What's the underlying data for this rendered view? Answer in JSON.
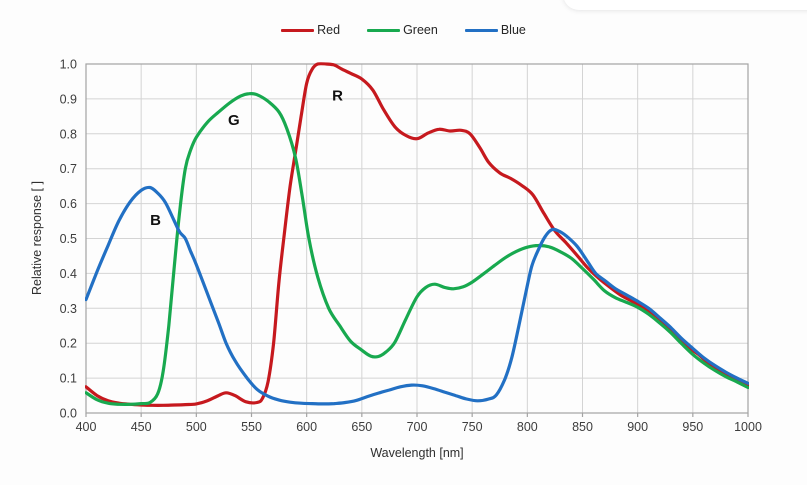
{
  "figure": {
    "x_axis_title": "Wavelength [nm]",
    "y_axis_title": "Relative response [ ]"
  },
  "chart_data": {
    "type": "line",
    "title": "",
    "xlabel": "Wavelength [nm]",
    "ylabel": "Relative response [ ]",
    "xlim": [
      400,
      1000
    ],
    "ylim": [
      0.0,
      1.0
    ],
    "x_ticks": [
      400,
      450,
      500,
      550,
      600,
      650,
      700,
      750,
      800,
      850,
      900,
      950,
      1000
    ],
    "y_ticks": [
      0.0,
      0.1,
      0.2,
      0.3,
      0.4,
      0.5,
      0.6,
      0.7,
      0.8,
      0.9,
      1.0
    ],
    "grid": true,
    "colors": {
      "grid": "#d4d4d4",
      "plot_border": "#a3a3a3",
      "tick_text": "#3d3d3d",
      "annotation_text": "#111111"
    },
    "legend": {
      "position": "top-center",
      "entries": [
        {
          "label": "Red",
          "color": "#c6191e"
        },
        {
          "label": "Green",
          "color": "#18a94f"
        },
        {
          "label": "Blue",
          "color": "#2270c4"
        }
      ]
    },
    "annotations": [
      {
        "text": "B",
        "x": 463,
        "y": 0.553
      },
      {
        "text": "G",
        "x": 534,
        "y": 0.84
      },
      {
        "text": "R",
        "x": 628,
        "y": 0.91
      }
    ],
    "series": [
      {
        "name": "Red",
        "color": "#c6191e",
        "points": [
          [
            400,
            0.075
          ],
          [
            410,
            0.05
          ],
          [
            420,
            0.035
          ],
          [
            430,
            0.028
          ],
          [
            440,
            0.025
          ],
          [
            450,
            0.023
          ],
          [
            460,
            0.022
          ],
          [
            470,
            0.022
          ],
          [
            480,
            0.023
          ],
          [
            490,
            0.024
          ],
          [
            500,
            0.026
          ],
          [
            510,
            0.035
          ],
          [
            520,
            0.05
          ],
          [
            527,
            0.058
          ],
          [
            535,
            0.05
          ],
          [
            545,
            0.032
          ],
          [
            555,
            0.03
          ],
          [
            560,
            0.042
          ],
          [
            565,
            0.09
          ],
          [
            570,
            0.2
          ],
          [
            575,
            0.38
          ],
          [
            580,
            0.52
          ],
          [
            585,
            0.65
          ],
          [
            590,
            0.75
          ],
          [
            595,
            0.85
          ],
          [
            600,
            0.945
          ],
          [
            605,
            0.985
          ],
          [
            610,
            1.0
          ],
          [
            618,
            1.0
          ],
          [
            625,
            0.997
          ],
          [
            632,
            0.985
          ],
          [
            640,
            0.973
          ],
          [
            650,
            0.957
          ],
          [
            660,
            0.925
          ],
          [
            670,
            0.868
          ],
          [
            680,
            0.82
          ],
          [
            690,
            0.795
          ],
          [
            700,
            0.786
          ],
          [
            710,
            0.802
          ],
          [
            720,
            0.813
          ],
          [
            730,
            0.808
          ],
          [
            740,
            0.81
          ],
          [
            748,
            0.8
          ],
          [
            757,
            0.76
          ],
          [
            765,
            0.718
          ],
          [
            775,
            0.688
          ],
          [
            785,
            0.672
          ],
          [
            795,
            0.652
          ],
          [
            805,
            0.625
          ],
          [
            815,
            0.572
          ],
          [
            825,
            0.522
          ],
          [
            835,
            0.488
          ],
          [
            845,
            0.452
          ],
          [
            855,
            0.415
          ],
          [
            865,
            0.385
          ],
          [
            875,
            0.36
          ],
          [
            885,
            0.337
          ],
          [
            895,
            0.32
          ],
          [
            905,
            0.302
          ],
          [
            915,
            0.282
          ],
          [
            925,
            0.255
          ],
          [
            935,
            0.225
          ],
          [
            945,
            0.19
          ],
          [
            955,
            0.168
          ],
          [
            965,
            0.14
          ],
          [
            975,
            0.12
          ],
          [
            985,
            0.104
          ],
          [
            1000,
            0.08
          ]
        ]
      },
      {
        "name": "Green",
        "color": "#18a94f",
        "points": [
          [
            400,
            0.058
          ],
          [
            410,
            0.038
          ],
          [
            420,
            0.028
          ],
          [
            430,
            0.025
          ],
          [
            440,
            0.025
          ],
          [
            450,
            0.027
          ],
          [
            458,
            0.03
          ],
          [
            465,
            0.055
          ],
          [
            470,
            0.12
          ],
          [
            475,
            0.25
          ],
          [
            480,
            0.42
          ],
          [
            485,
            0.58
          ],
          [
            490,
            0.7
          ],
          [
            495,
            0.755
          ],
          [
            500,
            0.79
          ],
          [
            510,
            0.833
          ],
          [
            520,
            0.862
          ],
          [
            530,
            0.888
          ],
          [
            540,
            0.908
          ],
          [
            548,
            0.915
          ],
          [
            555,
            0.912
          ],
          [
            565,
            0.893
          ],
          [
            575,
            0.862
          ],
          [
            582,
            0.815
          ],
          [
            590,
            0.73
          ],
          [
            596,
            0.62
          ],
          [
            602,
            0.5
          ],
          [
            610,
            0.39
          ],
          [
            620,
            0.3
          ],
          [
            630,
            0.25
          ],
          [
            640,
            0.205
          ],
          [
            650,
            0.18
          ],
          [
            658,
            0.163
          ],
          [
            665,
            0.162
          ],
          [
            672,
            0.175
          ],
          [
            680,
            0.203
          ],
          [
            690,
            0.27
          ],
          [
            700,
            0.333
          ],
          [
            708,
            0.36
          ],
          [
            716,
            0.369
          ],
          [
            725,
            0.36
          ],
          [
            733,
            0.356
          ],
          [
            742,
            0.362
          ],
          [
            750,
            0.375
          ],
          [
            760,
            0.398
          ],
          [
            770,
            0.422
          ],
          [
            780,
            0.445
          ],
          [
            790,
            0.463
          ],
          [
            800,
            0.475
          ],
          [
            810,
            0.48
          ],
          [
            820,
            0.476
          ],
          [
            830,
            0.462
          ],
          [
            840,
            0.443
          ],
          [
            850,
            0.414
          ],
          [
            860,
            0.383
          ],
          [
            870,
            0.35
          ],
          [
            880,
            0.33
          ],
          [
            890,
            0.317
          ],
          [
            900,
            0.303
          ],
          [
            910,
            0.283
          ],
          [
            920,
            0.258
          ],
          [
            930,
            0.23
          ],
          [
            940,
            0.198
          ],
          [
            950,
            0.168
          ],
          [
            960,
            0.143
          ],
          [
            970,
            0.122
          ],
          [
            980,
            0.104
          ],
          [
            990,
            0.089
          ],
          [
            1000,
            0.073
          ]
        ]
      },
      {
        "name": "Blue",
        "color": "#2270c4",
        "points": [
          [
            400,
            0.325
          ],
          [
            410,
            0.405
          ],
          [
            420,
            0.48
          ],
          [
            430,
            0.552
          ],
          [
            440,
            0.605
          ],
          [
            450,
            0.638
          ],
          [
            458,
            0.646
          ],
          [
            465,
            0.63
          ],
          [
            472,
            0.603
          ],
          [
            480,
            0.55
          ],
          [
            485,
            0.518
          ],
          [
            490,
            0.5
          ],
          [
            495,
            0.462
          ],
          [
            500,
            0.425
          ],
          [
            510,
            0.342
          ],
          [
            520,
            0.26
          ],
          [
            527,
            0.2
          ],
          [
            535,
            0.15
          ],
          [
            546,
            0.1
          ],
          [
            555,
            0.068
          ],
          [
            565,
            0.048
          ],
          [
            575,
            0.037
          ],
          [
            585,
            0.031
          ],
          [
            595,
            0.028
          ],
          [
            605,
            0.027
          ],
          [
            615,
            0.026
          ],
          [
            625,
            0.027
          ],
          [
            635,
            0.03
          ],
          [
            645,
            0.036
          ],
          [
            655,
            0.047
          ],
          [
            665,
            0.057
          ],
          [
            675,
            0.066
          ],
          [
            685,
            0.075
          ],
          [
            695,
            0.08
          ],
          [
            705,
            0.078
          ],
          [
            715,
            0.07
          ],
          [
            725,
            0.06
          ],
          [
            735,
            0.05
          ],
          [
            745,
            0.04
          ],
          [
            755,
            0.035
          ],
          [
            765,
            0.04
          ],
          [
            772,
            0.052
          ],
          [
            780,
            0.1
          ],
          [
            786,
            0.16
          ],
          [
            792,
            0.245
          ],
          [
            798,
            0.335
          ],
          [
            804,
            0.42
          ],
          [
            810,
            0.468
          ],
          [
            816,
            0.505
          ],
          [
            822,
            0.525
          ],
          [
            828,
            0.522
          ],
          [
            835,
            0.508
          ],
          [
            845,
            0.478
          ],
          [
            855,
            0.432
          ],
          [
            862,
            0.4
          ],
          [
            870,
            0.38
          ],
          [
            880,
            0.356
          ],
          [
            890,
            0.338
          ],
          [
            900,
            0.32
          ],
          [
            910,
            0.3
          ],
          [
            920,
            0.273
          ],
          [
            930,
            0.245
          ],
          [
            940,
            0.213
          ],
          [
            950,
            0.185
          ],
          [
            960,
            0.158
          ],
          [
            970,
            0.136
          ],
          [
            980,
            0.117
          ],
          [
            990,
            0.1
          ],
          [
            1000,
            0.085
          ]
        ]
      }
    ]
  }
}
